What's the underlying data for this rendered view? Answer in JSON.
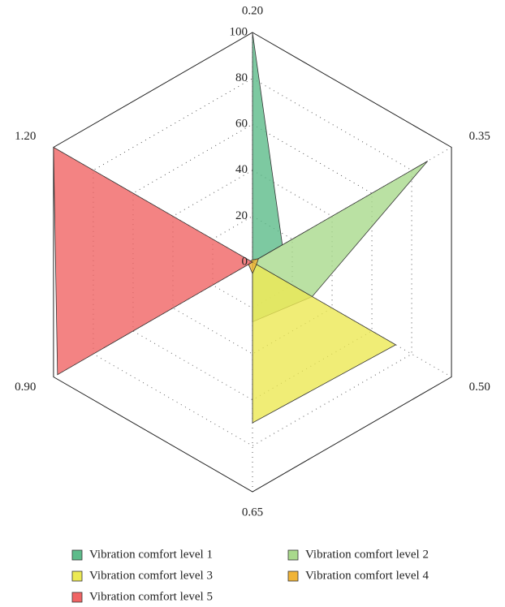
{
  "chart_data": {
    "type": "radar",
    "categories": [
      "0.20",
      "0.35",
      "0.50",
      "0.65",
      "0.90",
      "1.20"
    ],
    "ylim": [
      0,
      100
    ],
    "yticks": [
      0,
      20,
      40,
      60,
      80,
      100
    ],
    "legend": "bottom",
    "series": [
      {
        "name": "Vibration comfort level 1",
        "color": "#5dbb8a",
        "values": [
          100,
          15,
          0,
          0,
          0,
          0
        ]
      },
      {
        "name": "Vibration comfort level 2",
        "color": "#a9d98c",
        "values": [
          0,
          88,
          30,
          26,
          0,
          0
        ]
      },
      {
        "name": "Vibration comfort level 3",
        "color": "#ece954",
        "values": [
          0,
          0,
          72,
          70,
          0,
          0
        ]
      },
      {
        "name": "Vibration comfort level 4",
        "color": "#f0b437",
        "values": [
          1,
          3,
          2,
          5,
          2,
          1
        ]
      },
      {
        "name": "Vibration comfort level 5",
        "color": "#f06464",
        "values": [
          0,
          0,
          0,
          0,
          98,
          100
        ]
      }
    ]
  }
}
